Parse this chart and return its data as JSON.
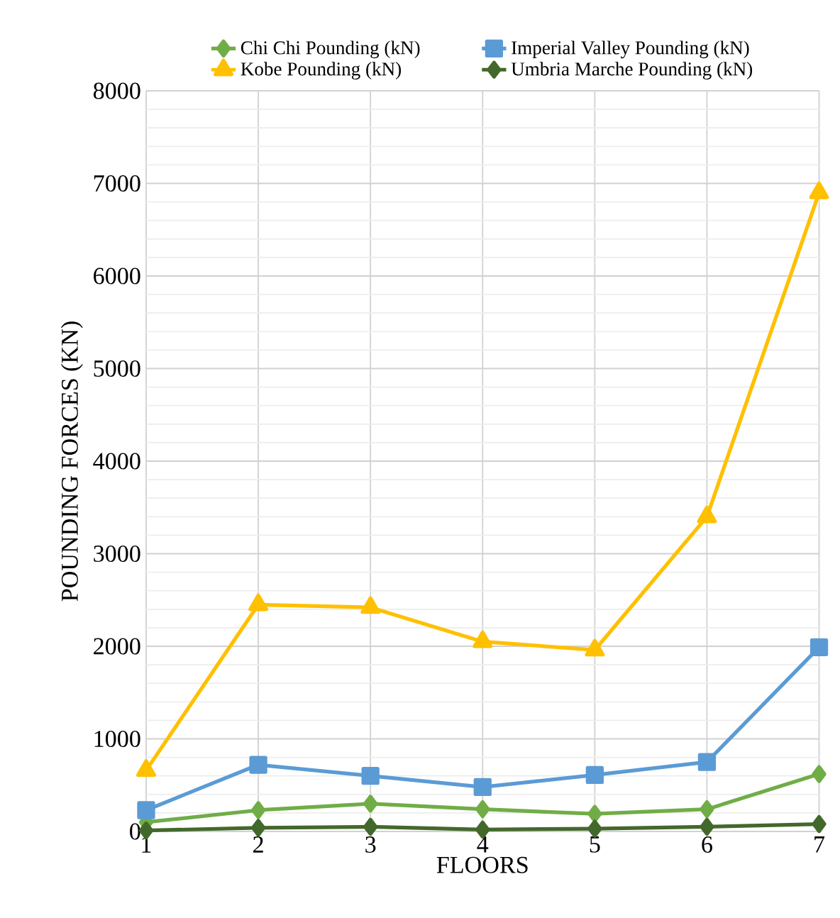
{
  "chart_data": {
    "type": "line",
    "xlabel": "FLOORS",
    "ylabel": "POUNDING FORCES (KN)",
    "x": [
      1,
      2,
      3,
      4,
      5,
      6,
      7
    ],
    "xlim": [
      1,
      7
    ],
    "xticks": [
      1,
      2,
      3,
      4,
      5,
      6,
      7
    ],
    "ylim": [
      0,
      8000
    ],
    "yticks": [
      0,
      1000,
      2000,
      3000,
      4000,
      5000,
      6000,
      7000,
      8000
    ],
    "grid": true,
    "legend": "top",
    "series": [
      {
        "name": "Chi Chi Pounding (kN)",
        "color": "#70ad47",
        "marker": "diamond",
        "values": [
          100,
          230,
          300,
          240,
          190,
          240,
          620
        ]
      },
      {
        "name": "Imperial Valley Pounding (kN)",
        "color": "#5b9bd5",
        "marker": "square",
        "values": [
          230,
          720,
          600,
          480,
          610,
          750,
          1990
        ]
      },
      {
        "name": "Kobe Pounding (kN)",
        "color": "#ffc000",
        "marker": "triangle",
        "values": [
          660,
          2450,
          2420,
          2050,
          1960,
          3400,
          6900
        ]
      },
      {
        "name": "Umbria Marche Pounding (kN)",
        "color": "#43682b",
        "marker": "diamond",
        "values": [
          10,
          40,
          50,
          20,
          30,
          50,
          80
        ]
      }
    ]
  }
}
